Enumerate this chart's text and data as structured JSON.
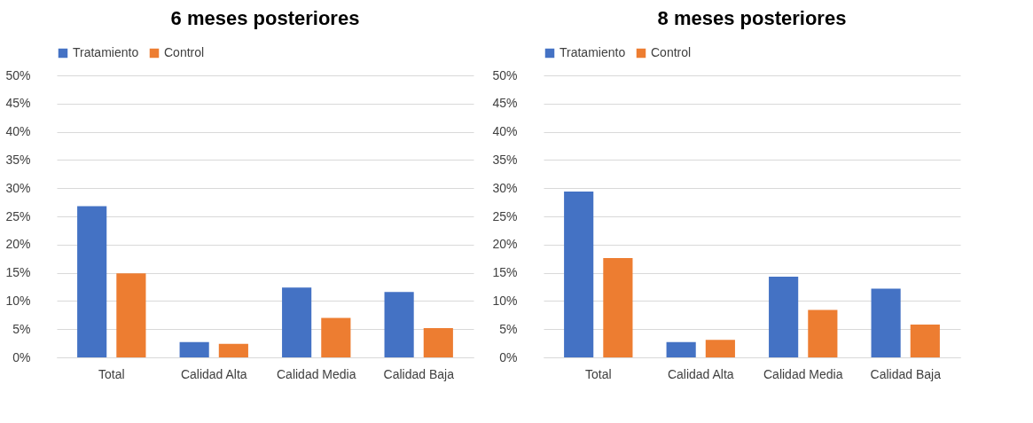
{
  "chart_data": [
    {
      "type": "bar",
      "title": "6 meses posteriores",
      "categories": [
        "Total",
        "Calidad Alta",
        "Calidad Media",
        "Calidad Baja"
      ],
      "series": [
        {
          "name": "Tratamiento",
          "color": "#4472c4",
          "values": [
            26.8,
            2.7,
            12.4,
            11.6
          ]
        },
        {
          "name": "Control",
          "color": "#ed7d31",
          "values": [
            14.9,
            2.4,
            7.0,
            5.2
          ]
        }
      ],
      "ylim": [
        0,
        50
      ],
      "yticks": [
        {
          "value": 0,
          "label": "0%"
        },
        {
          "value": 5,
          "label": "5%"
        },
        {
          "value": 10,
          "label": "10%"
        },
        {
          "value": 15,
          "label": "15%"
        },
        {
          "value": 20,
          "label": "20%"
        },
        {
          "value": 25,
          "label": "25%"
        },
        {
          "value": 30,
          "label": "30%"
        },
        {
          "value": 35,
          "label": "35%"
        },
        {
          "value": 40,
          "label": "40%"
        },
        {
          "value": 45,
          "label": "45%"
        },
        {
          "value": 50,
          "label": "50%"
        }
      ],
      "grid": "y",
      "legend": "top"
    },
    {
      "type": "bar",
      "title": "8 meses posteriores",
      "categories": [
        "Total",
        "Calidad Alta",
        "Calidad Media",
        "Calidad Baja"
      ],
      "series": [
        {
          "name": "Tratamiento",
          "color": "#4472c4",
          "values": [
            29.4,
            2.7,
            14.3,
            12.2
          ]
        },
        {
          "name": "Control",
          "color": "#ed7d31",
          "values": [
            17.6,
            3.1,
            8.4,
            5.8
          ]
        }
      ],
      "ylim": [
        0,
        50
      ],
      "yticks": [
        {
          "value": 0,
          "label": "0%"
        },
        {
          "value": 5,
          "label": "5%"
        },
        {
          "value": 10,
          "label": "10%"
        },
        {
          "value": 15,
          "label": "15%"
        },
        {
          "value": 20,
          "label": "20%"
        },
        {
          "value": 25,
          "label": "25%"
        },
        {
          "value": 30,
          "label": "30%"
        },
        {
          "value": 35,
          "label": "35%"
        },
        {
          "value": 40,
          "label": "40%"
        },
        {
          "value": 45,
          "label": "45%"
        },
        {
          "value": 50,
          "label": "50%"
        }
      ],
      "grid": "y",
      "legend": "top"
    }
  ]
}
